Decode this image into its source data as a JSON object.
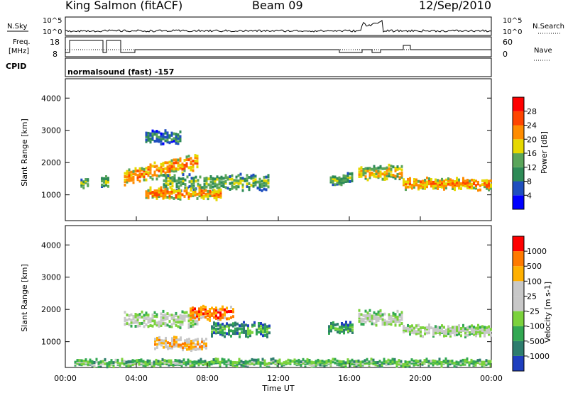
{
  "header": {
    "title": "King Salmon (fitACF)",
    "beam": "Beam 09",
    "date": "12/Sep/2010"
  },
  "status_panel": {
    "nsky_label": "N.Sky",
    "nsearch_label": "N.Search",
    "freq_label_line1": "Freq.",
    "freq_label_line2": "[MHz]",
    "nave_label": "Nave",
    "cpid_label": "CPID",
    "cpid_value": "normalsound (fast) -157",
    "noise_ticks": [
      "10^5",
      "10^0"
    ],
    "freq_ticks": [
      "18",
      "8"
    ],
    "nave_ticks": [
      "60",
      "0"
    ]
  },
  "chart_data": [
    {
      "type": "heatmap",
      "title": "",
      "xlabel": "Time UT",
      "ylabel": "Slant Range [km]",
      "x_ticks": [
        "00:00",
        "04:00",
        "08:00",
        "12:00",
        "16:00",
        "20:00",
        "00:00"
      ],
      "xlim_hours": [
        0,
        24
      ],
      "ylim": [
        200,
        4600
      ],
      "y_ticks": [
        1000,
        2000,
        3000,
        4000
      ],
      "colorbar": {
        "label": "Power [dB]",
        "ticks": [
          "4",
          "8",
          "12",
          "16",
          "20",
          "24",
          "28"
        ],
        "colors": [
          "#0000ff",
          "#1f4fbf",
          "#2e8b57",
          "#5aa55a",
          "#e6d800",
          "#ff8c00",
          "#ff4500",
          "#ff0000"
        ]
      },
      "series": [
        {
          "t_start": 0.85,
          "t_end": 1.3,
          "range_center": 1350,
          "thickness": 250,
          "level": 3
        },
        {
          "t_start": 2.0,
          "t_end": 2.4,
          "range_center": 1400,
          "thickness": 300,
          "level": 3
        },
        {
          "t_start": 3.3,
          "t_end": 7.5,
          "range_center": 1550,
          "thickness": 450,
          "level": 5
        },
        {
          "t_start": 5.5,
          "t_end": 11.5,
          "range_center": 1400,
          "thickness": 450,
          "level": 3
        },
        {
          "t_start": 4.5,
          "t_end": 8.8,
          "range_center": 1050,
          "thickness": 300,
          "level": 5
        },
        {
          "t_start": 4.5,
          "t_end": 6.5,
          "range_center": 2800,
          "thickness": 350,
          "level": 2
        },
        {
          "t_start": 14.9,
          "t_end": 16.2,
          "range_center": 1500,
          "thickness": 300,
          "level": 3
        },
        {
          "t_start": 16.5,
          "t_end": 19.0,
          "range_center": 1700,
          "thickness": 400,
          "level": 4
        },
        {
          "t_start": 19.0,
          "t_end": 24.0,
          "range_center": 1350,
          "thickness": 300,
          "level": 5
        }
      ]
    },
    {
      "type": "heatmap",
      "title": "",
      "xlabel": "Time UT",
      "ylabel": "Slant Range [km]",
      "x_ticks": [
        "00:00",
        "04:00",
        "08:00",
        "12:00",
        "16:00",
        "20:00",
        "00:00"
      ],
      "xlim_hours": [
        0,
        24
      ],
      "ylim": [
        200,
        4600
      ],
      "y_ticks": [
        1000,
        2000,
        3000,
        4000
      ],
      "colorbar": {
        "label": "Velocity [m s-1]",
        "ticks": [
          "1000",
          "500",
          "100",
          "25",
          "-25",
          "-100",
          "-500",
          "-1000"
        ],
        "colors": [
          "#1f3fbf",
          "#2e7d6e",
          "#32a852",
          "#7bd23c",
          "#c8c8c8",
          "#c8c8c8",
          "#ffb000",
          "#ff7a00",
          "#ff0000"
        ]
      },
      "series": [
        {
          "t_start": 3.3,
          "t_end": 7.5,
          "range_center": 1700,
          "thickness": 450,
          "level": 4
        },
        {
          "t_start": 8.2,
          "t_end": 11.5,
          "range_center": 1400,
          "thickness": 400,
          "level": 2
        },
        {
          "t_start": 5.0,
          "t_end": 8.0,
          "range_center": 950,
          "thickness": 350,
          "level": 6
        },
        {
          "t_start": 7.0,
          "t_end": 9.5,
          "range_center": 1900,
          "thickness": 400,
          "level": 7
        },
        {
          "t_start": 14.8,
          "t_end": 16.2,
          "range_center": 1450,
          "thickness": 300,
          "level": 2
        },
        {
          "t_start": 16.5,
          "t_end": 19.0,
          "range_center": 1750,
          "thickness": 400,
          "level": 4
        },
        {
          "t_start": 19.0,
          "t_end": 24.0,
          "range_center": 1350,
          "thickness": 300,
          "level": 4
        },
        {
          "t_start": 0.5,
          "t_end": 24.0,
          "range_center": 350,
          "thickness": 150,
          "level": 3
        }
      ]
    }
  ]
}
